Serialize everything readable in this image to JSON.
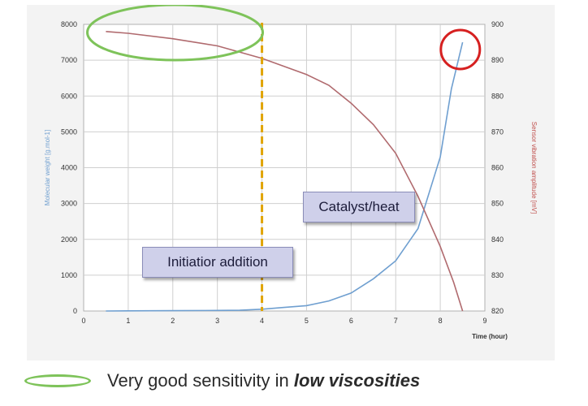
{
  "chart_data": {
    "type": "line",
    "title": "",
    "xlabel": "Time (hour)",
    "ylabel_left": "Molecular weight [g.mol-1]",
    "ylabel_right": "Sensor vibration amplitude [mV]",
    "x_ticks": [
      "0",
      "1",
      "2",
      "3",
      "4",
      "5",
      "6",
      "7",
      "8",
      "9"
    ],
    "y_left_ticks": [
      "0",
      "1000",
      "2000",
      "3000",
      "4000",
      "5000",
      "6000",
      "7000",
      "8000"
    ],
    "y_right_ticks": [
      "820",
      "830",
      "840",
      "850",
      "860",
      "870",
      "880",
      "890",
      "900"
    ],
    "xlim": [
      0,
      9
    ],
    "ylim_left": [
      0,
      8000
    ],
    "ylim_right": [
      820,
      900
    ],
    "grid": true,
    "series": [
      {
        "axis": "left",
        "color": "#6f9fd0",
        "x": [
          0.5,
          1,
          2,
          3,
          3.5,
          4,
          4.5,
          5,
          5.5,
          6,
          6.5,
          7,
          7.5,
          8,
          8.25,
          8.5
        ],
        "y": [
          0,
          5,
          10,
          15,
          20,
          50,
          100,
          150,
          280,
          500,
          900,
          1400,
          2300,
          4300,
          6200,
          7500
        ]
      },
      {
        "axis": "right",
        "color": "#b06a6e",
        "x": [
          0.5,
          1,
          2,
          3,
          4,
          5,
          5.5,
          6,
          6.5,
          7,
          7.5,
          8,
          8.3,
          8.5
        ],
        "y": [
          898,
          897.5,
          896,
          894,
          890.5,
          886,
          883,
          878,
          872,
          864,
          852,
          838,
          828,
          820
        ]
      }
    ],
    "vertical_marker": {
      "x": 4,
      "color": "#e0a400"
    },
    "annotations": [
      {
        "text": "Initiatior addition"
      },
      {
        "text": "Catalyst/heat"
      }
    ],
    "highlights": [
      {
        "shape": "ellipse",
        "color": "#7ec35a"
      },
      {
        "shape": "circle",
        "color": "#d62020"
      }
    ]
  },
  "legend": {
    "text_normal": "Very good sensitivity in ",
    "text_emphasis": "low viscosities",
    "icon": "green-ellipse-icon"
  }
}
